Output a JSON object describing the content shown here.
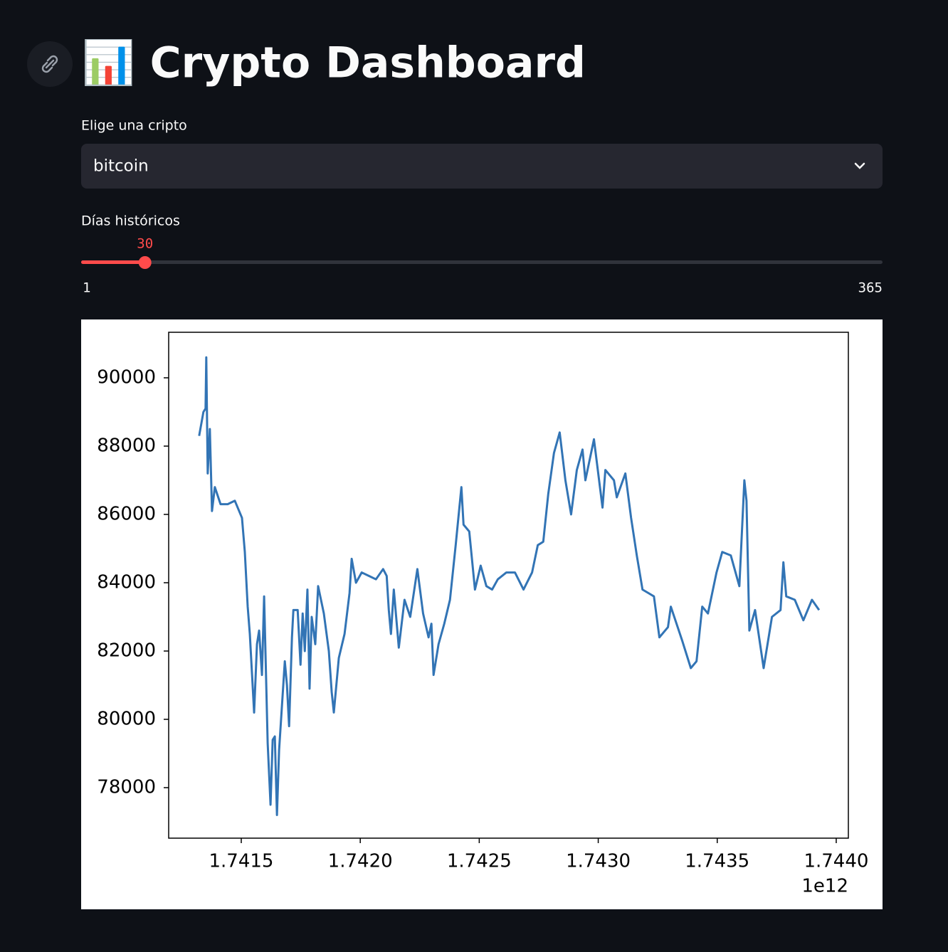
{
  "header": {
    "title": "📊 Crypto Dashboard"
  },
  "select": {
    "label": "Elige una cripto",
    "value": "bitcoin"
  },
  "slider": {
    "label": "Días históricos",
    "value": 30,
    "min": 1,
    "max": 365
  },
  "chart_data": {
    "type": "line",
    "x": [
      1.741323,
      1.741341,
      1.74135,
      1.741353,
      1.741359,
      1.741368,
      1.741377,
      1.741389,
      1.741413,
      1.741443,
      1.741473,
      1.741503,
      1.741515,
      1.741527,
      1.741536,
      1.741554,
      1.741566,
      1.741575,
      1.741587,
      1.741596,
      1.741611,
      1.741623,
      1.741632,
      1.741641,
      1.74165,
      1.741659,
      1.741671,
      1.741683,
      1.741692,
      1.741701,
      1.741713,
      1.741719,
      1.741737,
      1.741749,
      1.741758,
      1.741767,
      1.741778,
      1.741787,
      1.741796,
      1.741811,
      1.741823,
      1.741847,
      1.741868,
      1.74188,
      1.741889,
      1.74191,
      1.741934,
      1.741955,
      1.741964,
      1.741982,
      1.742006,
      1.742036,
      1.742066,
      1.742096,
      1.742111,
      1.74212,
      1.742129,
      1.742141,
      1.742162,
      1.742186,
      1.74221,
      1.74224,
      1.742264,
      1.742287,
      1.742299,
      1.742308,
      1.742329,
      1.742353,
      1.742377,
      1.742401,
      1.742425,
      1.742434,
      1.742458,
      1.742482,
      1.742506,
      1.74253,
      1.742554,
      1.742578,
      1.742614,
      1.74265,
      1.742686,
      1.742722,
      1.742746,
      1.742769,
      1.74279,
      1.742814,
      1.742838,
      1.742862,
      1.742886,
      1.74291,
      1.742934,
      1.742946,
      1.742982,
      1.743018,
      1.74303,
      1.743066,
      1.743078,
      1.743114,
      1.743138,
      1.743162,
      1.743186,
      1.74321,
      1.743234,
      1.743257,
      1.743293,
      1.743305,
      1.743353,
      1.743389,
      1.743413,
      1.743437,
      1.743461,
      1.743497,
      1.743521,
      1.743557,
      1.743593,
      1.743614,
      1.743623,
      1.743635,
      1.743659,
      1.743695,
      1.74373,
      1.743766,
      1.743778,
      1.74379,
      1.743826,
      1.743862,
      1.743898,
      1.743928
    ],
    "series": [
      {
        "color": "#3274b5",
        "values": [
          88300,
          89000,
          89100,
          90600,
          87200,
          88500,
          86100,
          86800,
          86300,
          86300,
          86400,
          85900,
          84900,
          83300,
          82500,
          80200,
          82200,
          82600,
          81300,
          83600,
          79300,
          77500,
          79400,
          79500,
          77200,
          79100,
          80400,
          81700,
          81000,
          79800,
          82400,
          83200,
          83200,
          81600,
          83100,
          82000,
          83800,
          80900,
          83000,
          82200,
          83900,
          83100,
          82000,
          80800,
          80200,
          81800,
          82500,
          83700,
          84700,
          84000,
          84300,
          84200,
          84100,
          84400,
          84200,
          83200,
          82500,
          83800,
          82100,
          83500,
          83000,
          84400,
          83100,
          82400,
          82800,
          81300,
          82200,
          82800,
          83500,
          85100,
          86800,
          85700,
          85500,
          83800,
          84500,
          83900,
          83800,
          84100,
          84300,
          84300,
          83800,
          84300,
          85100,
          85200,
          86600,
          87800,
          88400,
          87000,
          86000,
          87300,
          87900,
          87000,
          88200,
          86200,
          87300,
          87000,
          86500,
          87200,
          85900,
          84800,
          83800,
          83700,
          83600,
          82400,
          82700,
          83300,
          82300,
          81500,
          81700,
          83300,
          83100,
          84300,
          84900,
          84800,
          83900,
          87000,
          86400,
          82600,
          83200,
          81500,
          83000,
          83200,
          84600,
          83600,
          83500,
          82900,
          83500,
          83200
        ]
      }
    ],
    "xlim": [
      1.741195,
      1.744051
    ],
    "ylim": [
      76521,
      91333
    ],
    "xticks": [
      1.7415,
      {
        "value": 1.742,
        "label": "1.7420"
      },
      1.7425,
      {
        "value": 1.743,
        "label": "1.7430"
      },
      1.7435,
      {
        "value": 1.744,
        "label": "1.7440"
      }
    ],
    "yticks": [
      78000,
      80000,
      82000,
      84000,
      86000,
      88000,
      90000
    ],
    "x_offset_label": "1e12"
  }
}
